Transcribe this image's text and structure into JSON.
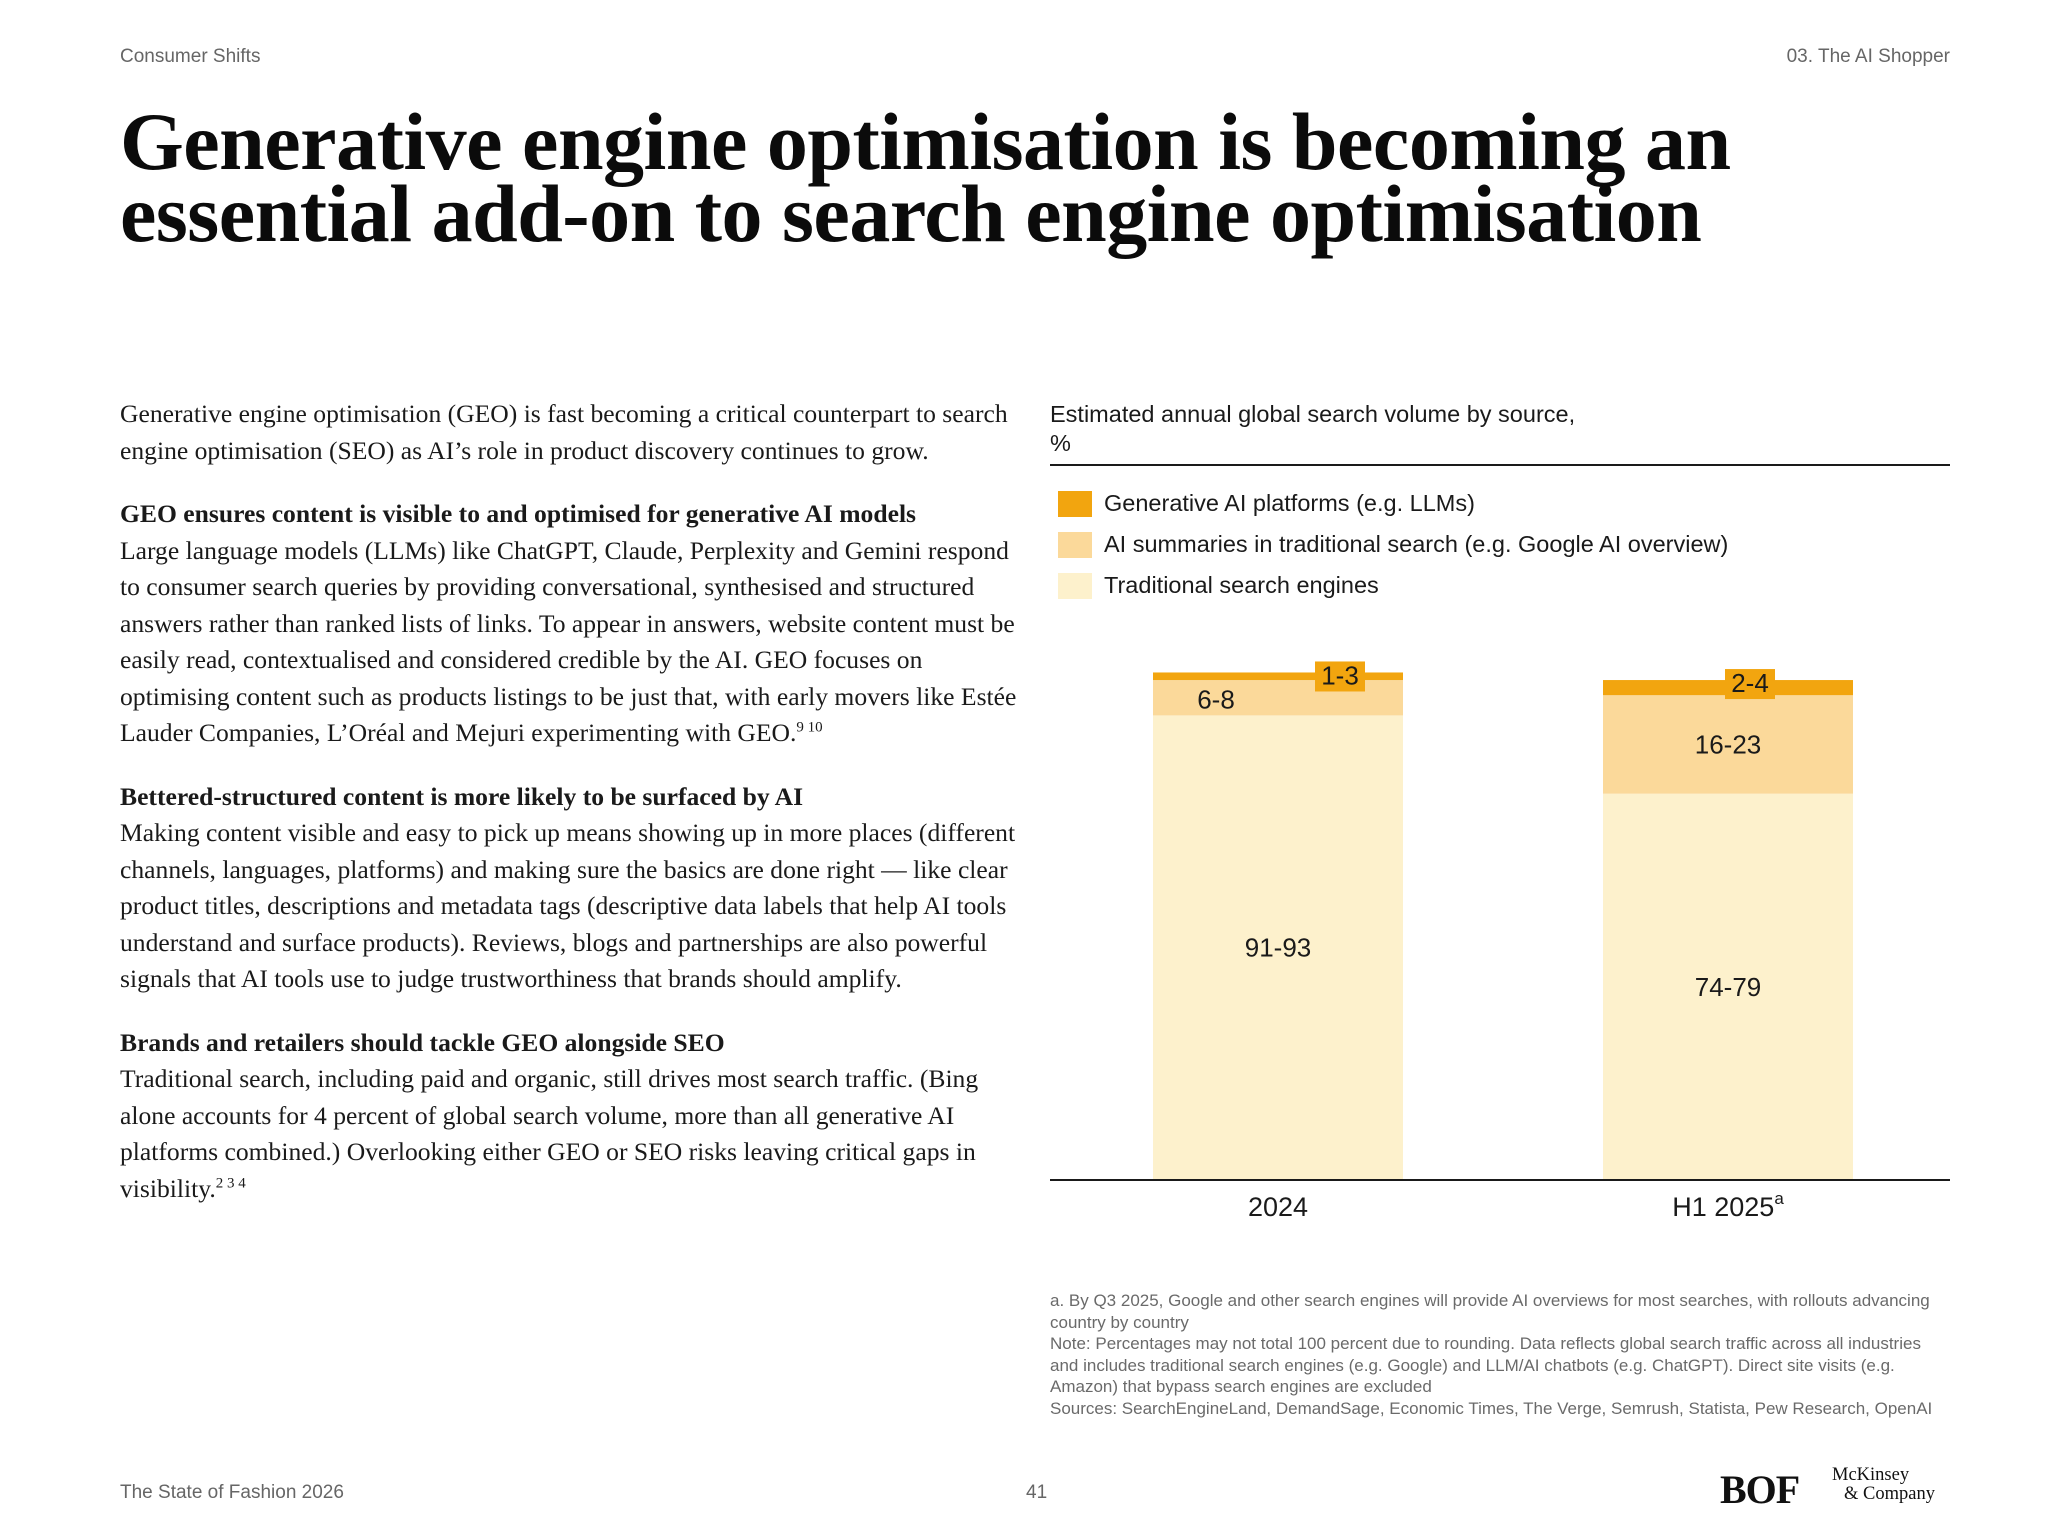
{
  "header": {
    "section": "Consumer Shifts",
    "chapter": "03. The AI Shopper"
  },
  "title": "Generative engine optimisation is becoming an essential add-on to search engine optimisation",
  "article": {
    "intro": "Generative engine optimisation (GEO) is fast becoming a critical counterpart to search engine optimisation (SEO) as AI’s role in product discovery continues to grow.",
    "sections": [
      {
        "heading": "GEO ensures content is visible to and optimised for generative AI models",
        "body": "Large language models (LLMs) like ChatGPT, Claude, Perplexity and Gemini respond to consumer search queries by providing conversational, synthesised and structured answers rather than ranked lists of links. To appear in answers, website content must be easily read, contextualised and considered credible by the AI. GEO focuses on optimising content such as products listings to be just that, with early movers like Estée Lauder Companies, L’Oréal and Mejuri experimenting with GEO.",
        "refs": "9 10"
      },
      {
        "heading": "Bettered-structured content is more likely to be surfaced by AI",
        "body": "Making content visible and easy to pick up means showing up in more places (different channels, languages, platforms) and making sure the basics are done right — like clear product titles, descriptions and metadata tags (descriptive data labels that help AI tools understand and surface products). Reviews, blogs and partnerships are also powerful signals that AI tools use to judge trustworthiness that brands should amplify.",
        "refs": ""
      },
      {
        "heading": "Brands and retailers should tackle GEO alongside SEO",
        "body": "Traditional search, including paid and organic, still drives most search traffic. (Bing alone accounts for 4 percent of global search volume, more than all generative AI platforms combined.) Overlooking either GEO or SEO risks leaving critical gaps in visibility.",
        "refs": "2 3 4"
      }
    ]
  },
  "chart_data": {
    "type": "bar",
    "stacked": true,
    "caption": "Estimated annual global search volume by source,",
    "unit": "%",
    "categories": [
      "2024",
      "H1 2025"
    ],
    "category_superscripts": [
      "",
      "a"
    ],
    "series": [
      {
        "name": "Traditional search engines",
        "color": "#FDF1CC",
        "values": [
          92,
          76.5
        ],
        "labels": [
          "91-93",
          "74-79"
        ]
      },
      {
        "name": "AI summaries in traditional search (e.g. Google AI overview)",
        "color": "#FBD99A",
        "values": [
          7,
          19.5
        ],
        "labels": [
          "6-8",
          "16-23"
        ]
      },
      {
        "name": "Generative AI platforms (e.g. LLMs)",
        "color": "#F2A50F",
        "values": [
          1.5,
          3
        ],
        "labels": [
          "1-3",
          "2-4"
        ]
      }
    ],
    "legend_order": [
      2,
      1,
      0
    ],
    "ylim": [
      0,
      100
    ],
    "grid": false,
    "legend_placement": "top-left"
  },
  "notes": [
    "a. By Q3 2025, Google and other search engines will provide AI overviews for most searches, with rollouts advancing country by country",
    "Note: Percentages may not total 100 percent due to rounding. Data reflects global search traffic across all industries and includes traditional search engines (e.g. Google) and LLM/AI chatbots (e.g. ChatGPT). Direct site visits (e.g. Amazon) that bypass search engines are excluded",
    "Sources: SearchEngineLand, DemandSage, Economic Times, The Verge, Semrush, Statista, Pew Research, OpenAI"
  ],
  "footer": {
    "publication": "The State of Fashion 2026",
    "page": "41",
    "logo_bof": "BOF",
    "logo_mck_1": "McKinsey",
    "logo_mck_2": "& Company"
  }
}
